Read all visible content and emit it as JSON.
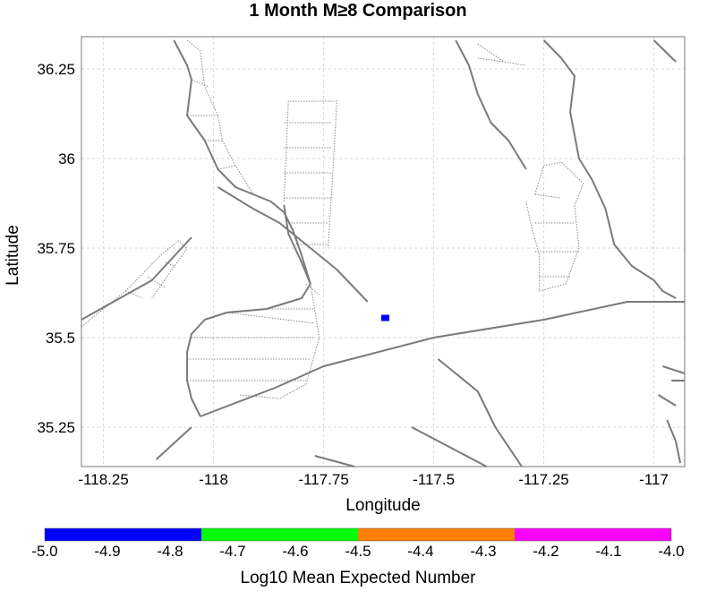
{
  "chart_data": {
    "type": "map",
    "title": "1 Month M≥8 Comparison",
    "xlabel": "Longitude",
    "ylabel": "Latitude",
    "xlim": [
      -118.3,
      -116.93
    ],
    "ylim": [
      35.14,
      36.34
    ],
    "x_ticks": [
      -118.25,
      -118,
      -117.75,
      -117.5,
      -117.25,
      -117
    ],
    "x_tick_labels": [
      "-118.25",
      "-118",
      "-117.75",
      "-117.5",
      "-117.25",
      "-117"
    ],
    "y_ticks": [
      35.25,
      35.5,
      35.75,
      36,
      36.25
    ],
    "y_tick_labels": [
      "35.25",
      "35.5",
      "35.75",
      "36",
      "36.25"
    ],
    "grid": true,
    "fault_color": "#7a7a7a",
    "faults": [
      [
        [
          -118.09,
          36.33
        ],
        [
          -118.06,
          36.26
        ],
        [
          -118.05,
          36.22
        ],
        [
          -118.06,
          36.12
        ],
        [
          -118.02,
          36.05
        ],
        [
          -117.99,
          35.97
        ],
        [
          -117.95,
          35.92
        ],
        [
          -117.91,
          35.9
        ],
        [
          -117.87,
          35.88
        ],
        [
          -117.84,
          35.85
        ],
        [
          -117.82,
          35.8
        ],
        [
          -117.8,
          35.73
        ],
        [
          -117.78,
          35.65
        ]
      ],
      [
        [
          -117.99,
          35.92
        ],
        [
          -117.91,
          35.86
        ],
        [
          -117.85,
          35.82
        ],
        [
          -117.79,
          35.76
        ],
        [
          -117.72,
          35.69
        ],
        [
          -117.65,
          35.6
        ]
      ],
      [
        [
          -117.84,
          35.87
        ],
        [
          -117.83,
          35.79
        ],
        [
          -117.8,
          35.71
        ],
        [
          -117.78,
          35.65
        ],
        [
          -117.8,
          35.61
        ],
        [
          -117.88,
          35.58
        ],
        [
          -117.97,
          35.57
        ],
        [
          -118.02,
          35.55
        ],
        [
          -118.05,
          35.51
        ],
        [
          -118.06,
          35.46
        ],
        [
          -118.06,
          35.38
        ],
        [
          -118.05,
          35.33
        ],
        [
          -118.03,
          35.28
        ]
      ],
      [
        [
          -118.03,
          35.28
        ],
        [
          -117.86,
          35.36
        ],
        [
          -117.75,
          35.42
        ],
        [
          -117.5,
          35.5
        ],
        [
          -117.25,
          35.55
        ],
        [
          -117.06,
          35.6
        ],
        [
          -116.93,
          35.6
        ]
      ],
      [
        [
          -117.45,
          36.33
        ],
        [
          -117.42,
          36.26
        ],
        [
          -117.4,
          36.18
        ],
        [
          -117.37,
          36.1
        ],
        [
          -117.33,
          36.05
        ],
        [
          -117.29,
          35.97
        ]
      ],
      [
        [
          -117.25,
          36.33
        ],
        [
          -117.21,
          36.28
        ],
        [
          -117.18,
          36.23
        ],
        [
          -117.19,
          36.13
        ],
        [
          -117.17,
          36.0
        ],
        [
          -117.14,
          35.94
        ],
        [
          -117.11,
          35.86
        ],
        [
          -117.09,
          35.76
        ],
        [
          -117.05,
          35.7
        ],
        [
          -117.0,
          35.66
        ],
        [
          -116.98,
          35.63
        ],
        [
          -116.95,
          35.61
        ]
      ],
      [
        [
          -117.0,
          36.33
        ],
        [
          -116.95,
          36.27
        ]
      ],
      [
        [
          -118.3,
          35.55
        ],
        [
          -118.14,
          35.66
        ],
        [
          -118.05,
          35.78
        ]
      ],
      [
        [
          -117.49,
          35.44
        ],
        [
          -117.4,
          35.35
        ],
        [
          -117.36,
          35.25
        ],
        [
          -117.3,
          35.14
        ]
      ],
      [
        [
          -117.55,
          35.25
        ],
        [
          -117.38,
          35.14
        ]
      ],
      [
        [
          -118.13,
          35.16
        ],
        [
          -118.05,
          35.25
        ]
      ],
      [
        [
          -117.77,
          35.17
        ],
        [
          -117.68,
          35.14
        ]
      ],
      [
        [
          -116.97,
          35.27
        ],
        [
          -116.95,
          35.21
        ],
        [
          -116.94,
          35.15
        ]
      ],
      [
        [
          -116.98,
          35.42
        ],
        [
          -116.93,
          35.4
        ]
      ],
      [
        [
          -116.99,
          35.34
        ],
        [
          -116.95,
          35.31
        ]
      ],
      [
        [
          -116.96,
          35.38
        ],
        [
          -116.93,
          35.38
        ]
      ]
    ],
    "fault_planes": [
      [
        [
          -118.06,
          36.33
        ],
        [
          -118.03,
          36.3
        ],
        [
          -118.02,
          36.2
        ],
        [
          -117.99,
          36.12
        ],
        [
          -117.98,
          36.05
        ],
        [
          -117.95,
          35.98
        ],
        [
          -117.91,
          35.9
        ]
      ],
      [
        [
          -117.84,
          35.88
        ],
        [
          -117.83,
          36.16
        ],
        [
          -117.72,
          36.16
        ],
        [
          -117.73,
          35.94
        ],
        [
          -117.74,
          35.75
        ]
      ],
      [
        [
          -117.8,
          35.73
        ],
        [
          -117.78,
          35.65
        ],
        [
          -117.76,
          35.5
        ],
        [
          -117.79,
          35.37
        ],
        [
          -117.85,
          35.33
        ],
        [
          -117.94,
          35.34
        ]
      ],
      [
        [
          -118.3,
          35.53
        ],
        [
          -118.2,
          35.63
        ],
        [
          -118.12,
          35.73
        ],
        [
          -118.08,
          35.77
        ],
        [
          -118.06,
          35.75
        ],
        [
          -118.1,
          35.68
        ],
        [
          -118.14,
          35.61
        ]
      ],
      [
        [
          -117.27,
          35.9
        ],
        [
          -117.25,
          35.98
        ],
        [
          -117.21,
          35.99
        ],
        [
          -117.16,
          35.93
        ],
        [
          -117.18,
          35.87
        ],
        [
          -117.17,
          35.75
        ],
        [
          -117.2,
          35.65
        ],
        [
          -117.26,
          35.63
        ],
        [
          -117.26,
          35.73
        ],
        [
          -117.28,
          35.82
        ],
        [
          -117.29,
          35.88
        ]
      ],
      [
        [
          -117.4,
          36.32
        ],
        [
          -117.34,
          36.27
        ],
        [
          -117.29,
          36.26
        ]
      ]
    ],
    "marker": {
      "lon": -117.61,
      "lat": 35.555,
      "color": "#0000ff"
    },
    "colorbar": {
      "label": "Log10 Mean Expected Number",
      "min": -5.0,
      "max": -4.0,
      "ticks": [
        "-5.0",
        "-4.9",
        "-4.8",
        "-4.7",
        "-4.6",
        "-4.5",
        "-4.4",
        "-4.3",
        "-4.2",
        "-4.1",
        "-4.0"
      ],
      "segments": [
        {
          "from": -5.0,
          "to": -4.75,
          "color": "#0000ff"
        },
        {
          "from": -4.75,
          "to": -4.5,
          "color": "#00ff00"
        },
        {
          "from": -4.5,
          "to": -4.25,
          "color": "#ff8000"
        },
        {
          "from": -4.25,
          "to": -4.0,
          "color": "#ff00ff"
        }
      ]
    }
  }
}
